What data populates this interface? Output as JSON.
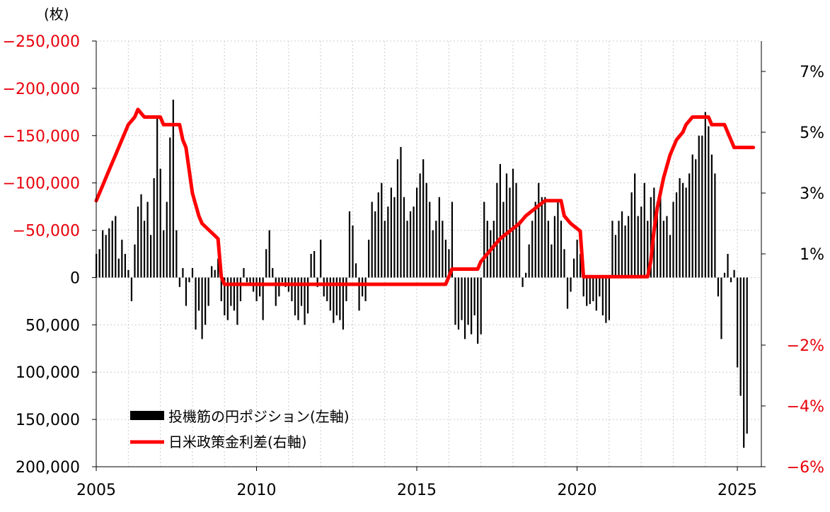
{
  "chart_data": {
    "type": "bar+line",
    "unit_label": "(枚)",
    "left_axis": {
      "ticks": [
        -250000,
        -200000,
        -150000,
        -100000,
        -50000,
        0,
        50000,
        100000,
        150000,
        200000
      ],
      "tick_labels": [
        "−250,000",
        "−200,000",
        "−150,000",
        "−100,000",
        "−50,000",
        "0",
        "50,000",
        "100,000",
        "150,000",
        "200,000"
      ],
      "negative_color": "#e8000b",
      "ylim": [
        -250000,
        200000
      ],
      "inverted": true
    },
    "right_axis": {
      "ticks": [
        7,
        5,
        3,
        1,
        -2,
        -4,
        -6
      ],
      "tick_labels": [
        "7%",
        "5%",
        "3%",
        "1%",
        "−2%",
        "−4%",
        "−6%"
      ],
      "negative_color": "#e8000b"
    },
    "x_axis": {
      "ticks": [
        2005,
        2010,
        2015,
        2020,
        2025
      ],
      "tick_labels": [
        "2005",
        "2010",
        "2015",
        "2020",
        "2025"
      ],
      "xlim": [
        2005,
        2025.75
      ]
    },
    "grid": true,
    "legend_position": "bottom-left",
    "legend": [
      {
        "label": "投機筋の円ポジション(左軸)",
        "color": "#000000",
        "kind": "bar"
      },
      {
        "label": "日米政策金利差(右軸)",
        "color": "#ff0000",
        "kind": "line"
      }
    ],
    "series": [
      {
        "name": "投機筋の円ポジション(左軸)",
        "kind": "bar",
        "axis": "left",
        "points": [
          [
            2005.0,
            -25000
          ],
          [
            2005.1,
            -30000
          ],
          [
            2005.2,
            -50000
          ],
          [
            2005.3,
            -45000
          ],
          [
            2005.4,
            -52000
          ],
          [
            2005.5,
            -60000
          ],
          [
            2005.6,
            -65000
          ],
          [
            2005.7,
            -20000
          ],
          [
            2005.8,
            -40000
          ],
          [
            2005.9,
            -25000
          ],
          [
            2006.0,
            -8000
          ],
          [
            2006.1,
            25000
          ],
          [
            2006.2,
            -35000
          ],
          [
            2006.3,
            -75000
          ],
          [
            2006.4,
            -88000
          ],
          [
            2006.5,
            -60000
          ],
          [
            2006.6,
            -80000
          ],
          [
            2006.7,
            -45000
          ],
          [
            2006.8,
            -105000
          ],
          [
            2006.9,
            -170000
          ],
          [
            2007.0,
            -115000
          ],
          [
            2007.1,
            -50000
          ],
          [
            2007.2,
            -80000
          ],
          [
            2007.3,
            -148000
          ],
          [
            2007.4,
            -188000
          ],
          [
            2007.5,
            -50000
          ],
          [
            2007.6,
            10000
          ],
          [
            2007.7,
            -10000
          ],
          [
            2007.8,
            30000
          ],
          [
            2007.9,
            5000
          ],
          [
            2008.0,
            -10000
          ],
          [
            2008.1,
            55000
          ],
          [
            2008.2,
            35000
          ],
          [
            2008.3,
            65000
          ],
          [
            2008.4,
            50000
          ],
          [
            2008.5,
            30000
          ],
          [
            2008.6,
            -12000
          ],
          [
            2008.7,
            -8000
          ],
          [
            2008.8,
            -20000
          ],
          [
            2008.9,
            25000
          ],
          [
            2009.0,
            40000
          ],
          [
            2009.1,
            45000
          ],
          [
            2009.2,
            30000
          ],
          [
            2009.3,
            35000
          ],
          [
            2009.4,
            50000
          ],
          [
            2009.5,
            25000
          ],
          [
            2009.6,
            -10000
          ],
          [
            2009.7,
            5000
          ],
          [
            2009.8,
            8000
          ],
          [
            2009.9,
            15000
          ],
          [
            2010.0,
            25000
          ],
          [
            2010.1,
            20000
          ],
          [
            2010.2,
            45000
          ],
          [
            2010.3,
            -30000
          ],
          [
            2010.4,
            -50000
          ],
          [
            2010.5,
            -10000
          ],
          [
            2010.6,
            30000
          ],
          [
            2010.7,
            20000
          ],
          [
            2010.8,
            5000
          ],
          [
            2010.9,
            10000
          ],
          [
            2011.0,
            15000
          ],
          [
            2011.1,
            25000
          ],
          [
            2011.2,
            40000
          ],
          [
            2011.3,
            45000
          ],
          [
            2011.4,
            30000
          ],
          [
            2011.5,
            50000
          ],
          [
            2011.6,
            38000
          ],
          [
            2011.7,
            -25000
          ],
          [
            2011.8,
            -28000
          ],
          [
            2011.9,
            10000
          ],
          [
            2012.0,
            -40000
          ],
          [
            2012.1,
            20000
          ],
          [
            2012.2,
            25000
          ],
          [
            2012.3,
            35000
          ],
          [
            2012.4,
            48000
          ],
          [
            2012.5,
            40000
          ],
          [
            2012.6,
            45000
          ],
          [
            2012.7,
            55000
          ],
          [
            2012.8,
            25000
          ],
          [
            2012.9,
            -70000
          ],
          [
            2013.0,
            -55000
          ],
          [
            2013.1,
            -15000
          ],
          [
            2013.2,
            35000
          ],
          [
            2013.3,
            20000
          ],
          [
            2013.4,
            25000
          ],
          [
            2013.5,
            -40000
          ],
          [
            2013.6,
            -80000
          ],
          [
            2013.7,
            -70000
          ],
          [
            2013.8,
            -90000
          ],
          [
            2013.9,
            -100000
          ],
          [
            2014.0,
            -60000
          ],
          [
            2014.1,
            -75000
          ],
          [
            2014.2,
            -95000
          ],
          [
            2014.3,
            -85000
          ],
          [
            2014.4,
            -125000
          ],
          [
            2014.5,
            -138000
          ],
          [
            2014.6,
            -85000
          ],
          [
            2014.7,
            -60000
          ],
          [
            2014.8,
            -70000
          ],
          [
            2014.9,
            -75000
          ],
          [
            2015.0,
            -95000
          ],
          [
            2015.1,
            -110000
          ],
          [
            2015.2,
            -125000
          ],
          [
            2015.3,
            -100000
          ],
          [
            2015.4,
            -80000
          ],
          [
            2015.5,
            -50000
          ],
          [
            2015.6,
            -60000
          ],
          [
            2015.7,
            -85000
          ],
          [
            2015.8,
            -60000
          ],
          [
            2015.9,
            -40000
          ],
          [
            2016.0,
            -30000
          ],
          [
            2016.1,
            -80000
          ],
          [
            2016.2,
            50000
          ],
          [
            2016.3,
            55000
          ],
          [
            2016.4,
            45000
          ],
          [
            2016.5,
            65000
          ],
          [
            2016.6,
            50000
          ],
          [
            2016.7,
            60000
          ],
          [
            2016.8,
            40000
          ],
          [
            2016.9,
            70000
          ],
          [
            2017.0,
            60000
          ],
          [
            2017.1,
            -80000
          ],
          [
            2017.2,
            -60000
          ],
          [
            2017.3,
            -50000
          ],
          [
            2017.4,
            -60000
          ],
          [
            2017.5,
            -100000
          ],
          [
            2017.6,
            -120000
          ],
          [
            2017.7,
            -80000
          ],
          [
            2017.8,
            -110000
          ],
          [
            2017.9,
            -95000
          ],
          [
            2018.0,
            -115000
          ],
          [
            2018.1,
            -100000
          ],
          [
            2018.2,
            -60000
          ],
          [
            2018.3,
            10000
          ],
          [
            2018.4,
            -5000
          ],
          [
            2018.5,
            -35000
          ],
          [
            2018.6,
            -60000
          ],
          [
            2018.7,
            -80000
          ],
          [
            2018.8,
            -100000
          ],
          [
            2018.9,
            -85000
          ],
          [
            2019.0,
            -85000
          ],
          [
            2019.1,
            -60000
          ],
          [
            2019.2,
            -35000
          ],
          [
            2019.3,
            -65000
          ],
          [
            2019.4,
            -80000
          ],
          [
            2019.5,
            -60000
          ],
          [
            2019.6,
            -30000
          ],
          [
            2019.7,
            33000
          ],
          [
            2019.8,
            15000
          ],
          [
            2019.9,
            -20000
          ],
          [
            2020.0,
            -40000
          ],
          [
            2020.1,
            -25000
          ],
          [
            2020.2,
            20000
          ],
          [
            2020.3,
            30000
          ],
          [
            2020.4,
            28000
          ],
          [
            2020.5,
            25000
          ],
          [
            2020.6,
            35000
          ],
          [
            2020.7,
            20000
          ],
          [
            2020.8,
            40000
          ],
          [
            2020.9,
            48000
          ],
          [
            2021.0,
            45000
          ],
          [
            2021.1,
            -60000
          ],
          [
            2021.2,
            -45000
          ],
          [
            2021.3,
            -60000
          ],
          [
            2021.4,
            -70000
          ],
          [
            2021.5,
            -55000
          ],
          [
            2021.6,
            -65000
          ],
          [
            2021.7,
            -90000
          ],
          [
            2021.8,
            -110000
          ],
          [
            2021.9,
            -65000
          ],
          [
            2022.0,
            -75000
          ],
          [
            2022.1,
            -100000
          ],
          [
            2022.2,
            -60000
          ],
          [
            2022.3,
            -85000
          ],
          [
            2022.4,
            -95000
          ],
          [
            2022.5,
            -80000
          ],
          [
            2022.6,
            -95000
          ],
          [
            2022.7,
            -60000
          ],
          [
            2022.8,
            -65000
          ],
          [
            2022.9,
            -45000
          ],
          [
            2023.0,
            -80000
          ],
          [
            2023.1,
            -90000
          ],
          [
            2023.2,
            -105000
          ],
          [
            2023.3,
            -100000
          ],
          [
            2023.4,
            -95000
          ],
          [
            2023.5,
            -110000
          ],
          [
            2023.6,
            -130000
          ],
          [
            2023.7,
            -125000
          ],
          [
            2023.8,
            -150000
          ],
          [
            2023.9,
            -150000
          ],
          [
            2024.0,
            -175000
          ],
          [
            2024.1,
            -160000
          ],
          [
            2024.2,
            -130000
          ],
          [
            2024.3,
            -110000
          ],
          [
            2024.4,
            20000
          ],
          [
            2024.5,
            65000
          ],
          [
            2024.6,
            -5000
          ],
          [
            2024.7,
            -25000
          ],
          [
            2024.8,
            5000
          ],
          [
            2024.9,
            -8000
          ],
          [
            2025.0,
            95000
          ],
          [
            2025.1,
            125000
          ],
          [
            2025.2,
            180000
          ],
          [
            2025.3,
            165000
          ]
        ]
      },
      {
        "name": "日米政策金利差(右軸)",
        "kind": "line",
        "axis": "right",
        "points": [
          [
            2005.0,
            2.75
          ],
          [
            2005.2,
            3.25
          ],
          [
            2005.4,
            3.75
          ],
          [
            2005.6,
            4.25
          ],
          [
            2005.8,
            4.75
          ],
          [
            2006.0,
            5.25
          ],
          [
            2006.2,
            5.5
          ],
          [
            2006.3,
            5.75
          ],
          [
            2006.5,
            5.5
          ],
          [
            2007.0,
            5.5
          ],
          [
            2007.1,
            5.25
          ],
          [
            2007.6,
            5.25
          ],
          [
            2007.7,
            4.75
          ],
          [
            2007.8,
            4.5
          ],
          [
            2008.0,
            3.0
          ],
          [
            2008.2,
            2.25
          ],
          [
            2008.3,
            2.0
          ],
          [
            2008.8,
            1.5
          ],
          [
            2008.9,
            0.25
          ],
          [
            2009.0,
            0.0
          ],
          [
            2015.9,
            0.0
          ],
          [
            2016.0,
            0.25
          ],
          [
            2016.1,
            0.5
          ],
          [
            2016.9,
            0.5
          ],
          [
            2017.0,
            0.75
          ],
          [
            2017.2,
            1.0
          ],
          [
            2017.4,
            1.25
          ],
          [
            2017.6,
            1.5
          ],
          [
            2017.9,
            1.75
          ],
          [
            2018.2,
            2.0
          ],
          [
            2018.4,
            2.25
          ],
          [
            2018.7,
            2.5
          ],
          [
            2019.0,
            2.75
          ],
          [
            2019.5,
            2.75
          ],
          [
            2019.6,
            2.25
          ],
          [
            2019.8,
            2.0
          ],
          [
            2020.1,
            1.75
          ],
          [
            2020.2,
            0.25
          ],
          [
            2022.2,
            0.25
          ],
          [
            2022.3,
            0.75
          ],
          [
            2022.4,
            1.75
          ],
          [
            2022.5,
            2.5
          ],
          [
            2022.7,
            3.5
          ],
          [
            2022.9,
            4.25
          ],
          [
            2023.1,
            4.75
          ],
          [
            2023.3,
            5.0
          ],
          [
            2023.4,
            5.25
          ],
          [
            2023.6,
            5.5
          ],
          [
            2024.1,
            5.5
          ],
          [
            2024.2,
            5.25
          ],
          [
            2024.6,
            5.25
          ],
          [
            2024.7,
            5.0
          ],
          [
            2024.8,
            4.75
          ],
          [
            2024.9,
            4.5
          ],
          [
            2025.5,
            4.5
          ]
        ]
      }
    ]
  }
}
